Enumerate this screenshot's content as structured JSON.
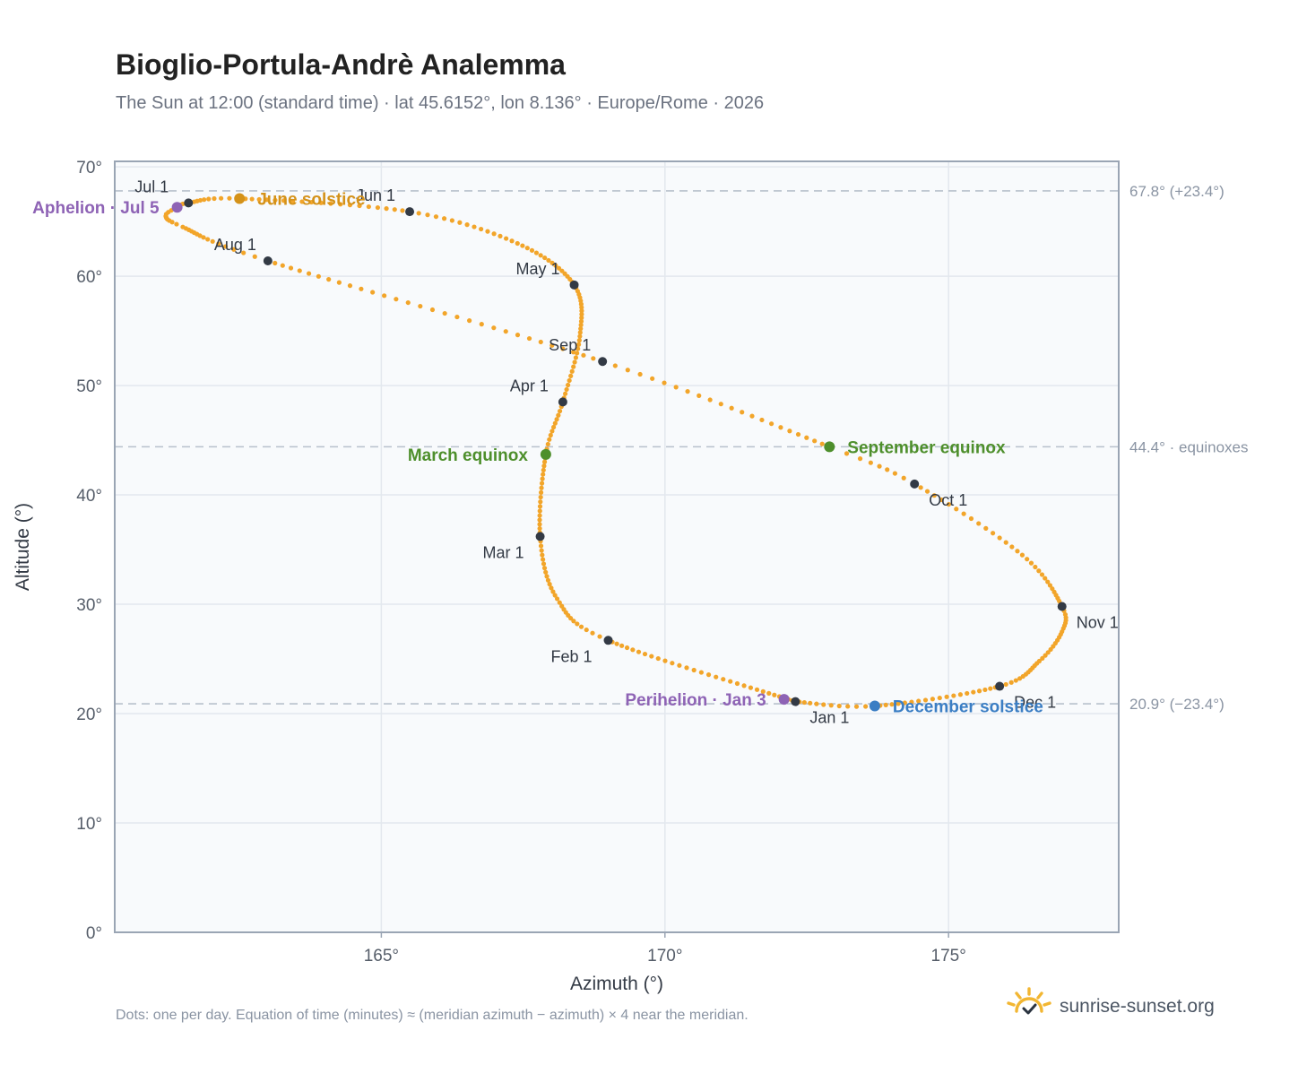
{
  "header": {
    "title": "Bioglio-Portula-Andrè Analemma",
    "subtitle": "The Sun at 12:00 (standard time) · lat 45.6152°, lon 8.136° · Europe/Rome · 2026"
  },
  "footer": {
    "note": "Dots: one per day. Equation of time (minutes) ≈ (meridian azimuth − azimuth) × 4 near the meridian.",
    "brand": "sunrise-sunset.org",
    "brand_icon": "sun-check-icon"
  },
  "colors": {
    "curve": "#f2a52a",
    "month_marker": "#333a45",
    "solstice_june": "#d4921a",
    "solstice_december": "#3b7ec4",
    "equinox": "#4e8f2c",
    "apsis": "#8e63b5",
    "refline": "#b8c1cc",
    "plot_bg": "#f8fafc",
    "grid": "#e3e8ee",
    "frame": "#9aa5b4"
  },
  "chart_data": {
    "type": "scatter",
    "title": "Bioglio-Portula-Andrè Analemma",
    "xlabel": "Azimuth (°)",
    "ylabel": "Altitude (°)",
    "xlim": [
      160.3,
      178.0
    ],
    "ylim": [
      0,
      70.5
    ],
    "xticks": [
      165,
      170,
      175
    ],
    "xtick_labels": [
      "165°",
      "170°",
      "175°"
    ],
    "yticks": [
      0,
      10,
      20,
      30,
      40,
      50,
      60,
      70
    ],
    "ytick_labels": [
      "0°",
      "10°",
      "20°",
      "30°",
      "40°",
      "50°",
      "60°",
      "70°"
    ],
    "grid": true,
    "month_points": [
      {
        "label": "Jan 1",
        "az": 172.3,
        "alt": 21.1,
        "anchor": "below"
      },
      {
        "label": "Feb 1",
        "az": 169.0,
        "alt": 26.7,
        "anchor": "below-left"
      },
      {
        "label": "Mar 1",
        "az": 167.8,
        "alt": 36.2,
        "anchor": "below-left"
      },
      {
        "label": "Apr 1",
        "az": 168.2,
        "alt": 48.5,
        "anchor": "left"
      },
      {
        "label": "May 1",
        "az": 168.4,
        "alt": 59.2,
        "anchor": "left"
      },
      {
        "label": "Jun 1",
        "az": 165.5,
        "alt": 65.9,
        "anchor": "above-left"
      },
      {
        "label": "Jul 1",
        "az": 161.6,
        "alt": 66.7,
        "anchor": "above-left"
      },
      {
        "label": "Aug 1",
        "az": 163.0,
        "alt": 61.4,
        "anchor": "above-left"
      },
      {
        "label": "Sep 1",
        "az": 168.9,
        "alt": 52.2,
        "anchor": "above-left"
      },
      {
        "label": "Oct 1",
        "az": 174.4,
        "alt": 41.0,
        "anchor": "below-right"
      },
      {
        "label": "Nov 1",
        "az": 177.0,
        "alt": 29.8,
        "anchor": "right"
      },
      {
        "label": "Dec 1",
        "az": 175.9,
        "alt": 22.5,
        "anchor": "below-right"
      }
    ],
    "events": [
      {
        "label": "June solstice",
        "az": 162.5,
        "alt": 67.1,
        "color": "#d4921a",
        "anchor": "right"
      },
      {
        "label": "December solstice",
        "az": 173.7,
        "alt": 20.7,
        "color": "#3b7ec4",
        "anchor": "right"
      },
      {
        "label": "March equinox",
        "az": 167.9,
        "alt": 43.7,
        "color": "#4e8f2c",
        "anchor": "left"
      },
      {
        "label": "September equinox",
        "az": 172.9,
        "alt": 44.4,
        "color": "#4e8f2c",
        "anchor": "right"
      },
      {
        "label": "Aphelion · Jul 5",
        "az": 161.4,
        "alt": 66.3,
        "color": "#8e63b5",
        "anchor": "left"
      },
      {
        "label": "Perihelion · Jan 3",
        "az": 172.1,
        "alt": 21.3,
        "color": "#8e63b5",
        "anchor": "left"
      }
    ],
    "reference_lines": [
      {
        "alt": 67.8,
        "label": "67.8° (+23.4°)"
      },
      {
        "alt": 44.4,
        "label": "44.4° · equinoxes"
      },
      {
        "alt": 20.9,
        "label": "20.9° (−23.4°)"
      }
    ],
    "curve_waypoints": [
      {
        "day": 1,
        "az": 172.3,
        "alt": 21.1
      },
      {
        "day": 32,
        "az": 169.0,
        "alt": 26.7
      },
      {
        "day": 45,
        "az": 168.1,
        "alt": 30.5
      },
      {
        "day": 60,
        "az": 167.8,
        "alt": 36.2
      },
      {
        "day": 79,
        "az": 167.9,
        "alt": 43.7
      },
      {
        "day": 91,
        "az": 168.2,
        "alt": 48.5
      },
      {
        "day": 106,
        "az": 168.5,
        "alt": 54.5
      },
      {
        "day": 121,
        "az": 168.4,
        "alt": 59.2
      },
      {
        "day": 137,
        "az": 167.4,
        "alt": 63.0
      },
      {
        "day": 152,
        "az": 165.5,
        "alt": 65.9
      },
      {
        "day": 172,
        "az": 162.5,
        "alt": 67.1
      },
      {
        "day": 182,
        "az": 161.6,
        "alt": 66.7
      },
      {
        "day": 186,
        "az": 161.4,
        "alt": 66.3
      },
      {
        "day": 191,
        "az": 161.2,
        "alt": 65.5
      },
      {
        "day": 198,
        "az": 161.5,
        "alt": 64.5
      },
      {
        "day": 213,
        "az": 163.0,
        "alt": 61.4
      },
      {
        "day": 244,
        "az": 168.9,
        "alt": 52.2
      },
      {
        "day": 266,
        "az": 172.9,
        "alt": 44.4
      },
      {
        "day": 274,
        "az": 174.4,
        "alt": 41.0
      },
      {
        "day": 290,
        "az": 176.3,
        "alt": 34.5
      },
      {
        "day": 305,
        "az": 177.0,
        "alt": 29.8
      },
      {
        "day": 313,
        "az": 177.0,
        "alt": 27.5
      },
      {
        "day": 323,
        "az": 176.6,
        "alt": 24.8
      },
      {
        "day": 335,
        "az": 175.9,
        "alt": 22.5
      },
      {
        "day": 355,
        "az": 173.7,
        "alt": 20.7
      },
      {
        "day": 366,
        "az": 172.3,
        "alt": 21.1
      }
    ]
  }
}
